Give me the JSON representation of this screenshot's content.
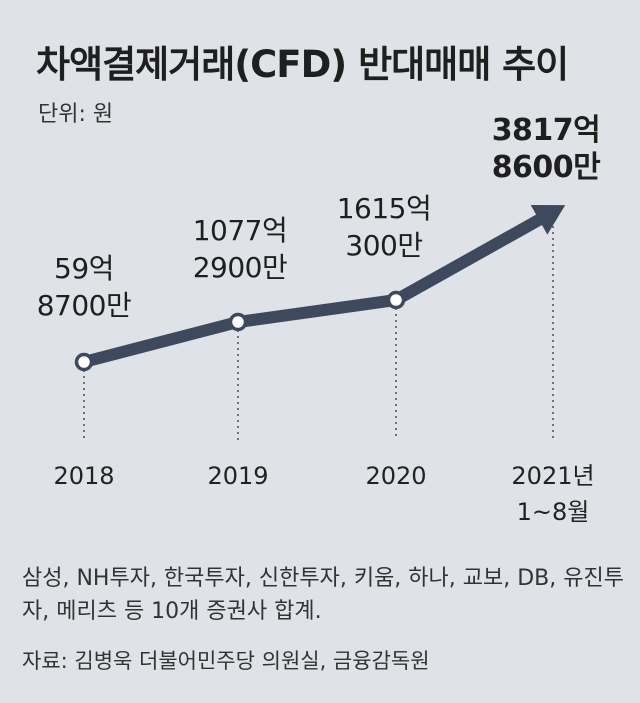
{
  "header": {
    "title": "차액결제거래(CFD) 반대매매 추이",
    "unit": "단위: 원"
  },
  "chart_data": {
    "type": "line",
    "title": "차액결제거래(CFD) 반대매매 추이",
    "unit": "원",
    "categories": [
      "2018",
      "2019",
      "2020",
      "2021년 1~8월"
    ],
    "category_labels": [
      [
        "2018"
      ],
      [
        "2019"
      ],
      [
        "2020"
      ],
      [
        "2021년",
        "1~8월"
      ]
    ],
    "values": [
      5987000000,
      107729000000,
      161503000000,
      381786000000
    ],
    "data_labels": [
      [
        "59억",
        "8700만"
      ],
      [
        "1077억",
        "2900만"
      ],
      [
        "1615억",
        "300만"
      ],
      [
        "3817억",
        "8600만"
      ]
    ],
    "ylim": [
      0,
      400000000000
    ],
    "grid": false,
    "colors": {
      "line": "#3d4a5e",
      "marker_fill": "#ffffff",
      "guide": "#555555"
    }
  },
  "footer": {
    "note": "삼성, NH투자, 한국투자, 신한투자, 키움, 하나, 교보, DB, 유진투자, 메리츠 등 10개 증권사 합계.",
    "source": "자료: 김병욱 더불어민주당 의원실, 금융감독원"
  }
}
